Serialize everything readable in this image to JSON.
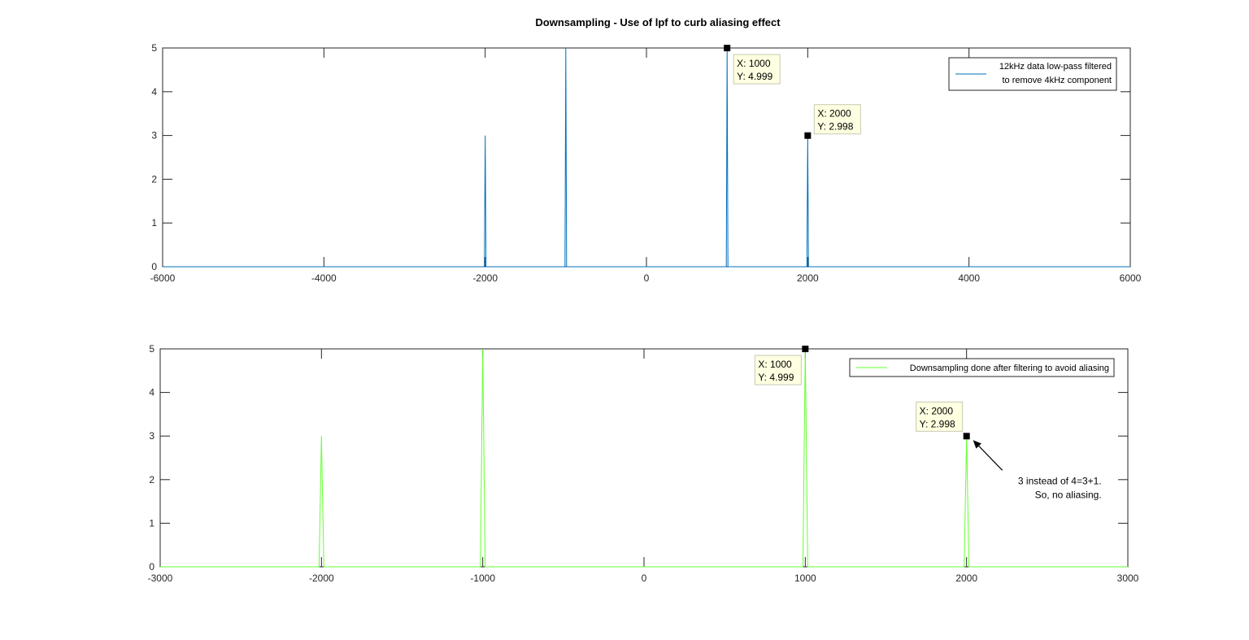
{
  "figure": {
    "title": "Downsampling - Use of lpf to curb aliasing effect"
  },
  "chart_data": [
    {
      "type": "line",
      "title": "Downsampling - Use of lpf to curb aliasing effect",
      "xlim": [
        -6000,
        6000
      ],
      "ylim": [
        0,
        5
      ],
      "xticks": [
        "-6000",
        "-4000",
        "-2000",
        "0",
        "2000",
        "4000",
        "6000"
      ],
      "yticks": [
        "0",
        "1",
        "2",
        "3",
        "4",
        "5"
      ],
      "grid": false,
      "legend_position": "top-right",
      "series": [
        {
          "name": "12kHz data low-pass filtered to remove 4kHz component",
          "legend_lines": [
            "12kHz data low-pass filtered",
            "to remove 4kHz component"
          ],
          "color": "#0072BD",
          "x": [
            -6000,
            -2010,
            -2000,
            -1990,
            -1010,
            -1000,
            -990,
            990,
            1000,
            1010,
            1990,
            2000,
            2010,
            6000
          ],
          "y": [
            0,
            0,
            3,
            0,
            0,
            5,
            0,
            0,
            4.999,
            0,
            0,
            2.998,
            0,
            0
          ]
        }
      ],
      "datatips": [
        {
          "x": 1000,
          "y": 4.999,
          "x_label": "X: 1000",
          "y_label": "Y: 4.999"
        },
        {
          "x": 2000,
          "y": 2.998,
          "x_label": "X: 2000",
          "y_label": "Y: 2.998"
        }
      ]
    },
    {
      "type": "line",
      "xlim": [
        -3000,
        3000
      ],
      "ylim": [
        0,
        5
      ],
      "xticks": [
        "-3000",
        "-2000",
        "-1000",
        "0",
        "1000",
        "2000",
        "3000"
      ],
      "yticks": [
        "0",
        "1",
        "2",
        "3",
        "4",
        "5"
      ],
      "grid": false,
      "legend_position": "top-right",
      "series": [
        {
          "name": "Downsampling done after filtering to avoid aliasing",
          "legend_lines": [
            "Downsampling done after filtering to avoid aliasing"
          ],
          "color": "#66FF33",
          "x": [
            -3000,
            -2015,
            -2000,
            -1985,
            -1015,
            -1000,
            -985,
            985,
            1000,
            1015,
            1985,
            2000,
            2015,
            3000
          ],
          "y": [
            0,
            0,
            3,
            0,
            0,
            5,
            0,
            0,
            4.999,
            0,
            0,
            2.998,
            0,
            0
          ]
        }
      ],
      "datatips": [
        {
          "x": 1000,
          "y": 4.999,
          "x_label": "X: 1000",
          "y_label": "Y: 4.999"
        },
        {
          "x": 2000,
          "y": 2.998,
          "x_label": "X: 2000",
          "y_label": "Y: 2.998"
        }
      ],
      "annotation": {
        "lines": [
          "3 instead of 4=3+1.",
          "So, no aliasing."
        ],
        "points_to": {
          "x": 2000,
          "y": 2.998
        }
      }
    }
  ]
}
